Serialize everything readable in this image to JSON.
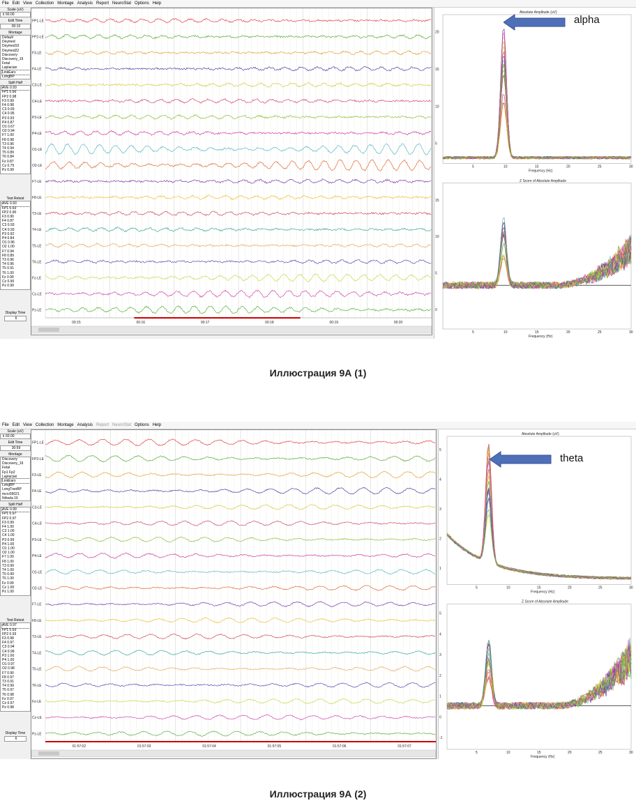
{
  "menu": [
    "File",
    "Edit",
    "View",
    "Collection",
    "Montage",
    "Analysis",
    "Report",
    "NeuroStat",
    "Options",
    "Help"
  ],
  "colors": {
    "trace_palette": [
      "#e0404a",
      "#5aa83a",
      "#e0a23a",
      "#4b3fa8",
      "#d8c93a",
      "#d0487a",
      "#8fbe3a",
      "#d03aa0",
      "#58b8c8",
      "#e06a3a",
      "#7a3ab0",
      "#e8c23a",
      "#d04858",
      "#3aa8a0",
      "#e8a85a",
      "#5a4ab8",
      "#c8d84a",
      "#d04ab0",
      "#5ab040"
    ],
    "arrow": "#4f6fb8",
    "playback_bar": "#cc0000"
  },
  "panel1": {
    "sidebar": {
      "scale_label": "Scale (uV)",
      "scale_value": "60.00",
      "edit_time_label": "Edit Time",
      "edit_time_value": "00:10",
      "montage_label": "Montage",
      "montage_items": [
        "Default",
        "Deymed",
        "Deymed19",
        "Deymed22",
        "Discovery",
        "Discovery_19",
        "Fetal",
        "Laplacian",
        "LinkEars",
        "LongBP"
      ],
      "montage_selected": "LinkEars",
      "split_half_label": "Split Half",
      "split_half": [
        "AVE 0.93",
        "FP1 0.96",
        "FP2 0.98",
        "F3 0.99",
        "F4 0.98",
        "C3 0.93",
        "C4 0.95",
        "P3 0.93",
        "P4 0.87",
        "O1 0.67",
        "O2 0.94",
        "F7 1.00",
        "F8 0.98",
        "T3 0.96",
        "T4 0.94",
        "T5 0.89",
        "T6 0.84",
        "Fz 0.87",
        "Cz 0.75",
        "Pz 0.99"
      ],
      "test_retest_label": "Test Retest",
      "test_retest": [
        "AVE 0.93",
        "FP1 0.93",
        "FP2 0.90",
        "F3 0.90",
        "F4 0.87",
        "C3 0.93",
        "C4 0.93",
        "P3 0.92",
        "P4 0.84",
        "O1 0.96",
        "O2 1.00",
        "F7 0.94",
        "F8 0.89",
        "T3 0.96",
        "T4 0.96",
        "T5 0.91",
        "T6 1.00",
        "Fz 0.99",
        "Cz 0.90",
        "Pz 0.99"
      ],
      "display_time_label": "Display Time",
      "display_time_value": "6"
    },
    "channels": [
      "FP1-LE",
      "FP2-LE",
      "F3-LE",
      "F4-LE",
      "C3-LE",
      "C4-LE",
      "P3-LE",
      "P4-LE",
      "O1-LE",
      "O2-LE",
      "F7-LE",
      "F8-LE",
      "T3-LE",
      "T4-LE",
      "T5-LE",
      "T6-LE",
      "Fz-LE",
      "Cz-LE",
      "Pz-LE"
    ],
    "time_ticks": [
      "00:15",
      "00:16",
      "00:17",
      "00:18",
      "00:19",
      "00:20"
    ],
    "upper_plot": {
      "title": "Absolute Amplitude (uV)",
      "xlabel": "Frequency (Hz)",
      "yticks": [
        "20",
        "15",
        "10",
        "5"
      ],
      "xticks": [
        "5",
        "10",
        "15",
        "20",
        "25",
        "30"
      ],
      "peak_hz": 10
    },
    "lower_plot": {
      "title": "Z Score of Absolute Amplitude",
      "xlabel": "Frequency (Hz)",
      "yticks": [
        "15",
        "10",
        "5",
        "0"
      ],
      "xticks": [
        "5",
        "10",
        "15",
        "20",
        "25",
        "30"
      ]
    },
    "annotation": "alpha",
    "caption": "Иллюстрация 9А (1)"
  },
  "panel2": {
    "sidebar": {
      "scale_label": "Scale (uV)",
      "scale_value": "60.00",
      "edit_time_label": "Edit Time",
      "edit_time_value": "30:59",
      "montage_label": "Montage",
      "montage_items": [
        "Discovery",
        "Discovery_19",
        "Fetal",
        "Fp1 Fp2",
        "Laplacian",
        "LinkEars",
        "LongBP",
        "LongTranBP",
        "mcrc65021",
        "Nihoda 16"
      ],
      "montage_selected": "LinkEars",
      "split_half_label": "Split Half",
      "split_half": [
        "AVE 0.99",
        "FP1 0.97",
        "FP2 0.97",
        "F3 0.99",
        "F4 1.00",
        "C3 1.00",
        "C4 1.00",
        "P3 0.99",
        "P4 1.00",
        "O1 1.00",
        "O2 1.00",
        "F7 1.00",
        "F8 1.00",
        "T3 0.99",
        "T4 1.00",
        "T5 0.99",
        "T6 1.00",
        "Fz 0.99",
        "Cz 1.00",
        "Pz 1.00"
      ],
      "test_retest_label": "Test Retest",
      "test_retest": [
        "AVE 0.97",
        "FP1 0.93",
        "FP2 0.93",
        "F3 0.98",
        "F4 0.97",
        "C3 0.94",
        "C4 0.99",
        "P3 1.00",
        "P4 1.00",
        "O1 0.97",
        "O2 0.98",
        "F7 0.90",
        "F8 0.97",
        "T3 0.91",
        "T4 0.99",
        "T5 0.97",
        "T6 0.98",
        "Fz 0.97",
        "Cz 0.97",
        "Pz 0.98"
      ],
      "display_time_label": "Display Time",
      "display_time_value": "6"
    },
    "channels": [
      "FP1-LE",
      "FP2-LE",
      "F3-LE",
      "F4-LE",
      "C3-LE",
      "C4-LE",
      "P3-LE",
      "P4-LE",
      "O1-LE",
      "O2-LE",
      "F7-LE",
      "F8-LE",
      "T3-LE",
      "T4-LE",
      "T5-LE",
      "T6-LE",
      "Fz-LE",
      "Cz-LE",
      "Pz-LE"
    ],
    "time_ticks": [
      "01:57:02",
      "01:57:03",
      "01:57:04",
      "01:57:05",
      "01:57:06",
      "01:57:07"
    ],
    "upper_plot": {
      "title": "Absolute Amplitude (uV)",
      "xlabel": "Frequency (Hz)",
      "yticks": [
        "5",
        "4",
        "3",
        "2",
        "1"
      ],
      "xticks": [
        "5",
        "10",
        "15",
        "20",
        "25",
        "30"
      ],
      "peak_hz": 7
    },
    "lower_plot": {
      "title": "Z Score of Absolute Amplitude",
      "xlabel": "Frequency (Hz)",
      "yticks": [
        "5",
        "4",
        "3",
        "2",
        "1",
        "0",
        "-1"
      ],
      "xticks": [
        "5",
        "10",
        "15",
        "20",
        "25",
        "30"
      ]
    },
    "annotation": "theta",
    "caption": "Иллюстрация 9А (2)"
  }
}
